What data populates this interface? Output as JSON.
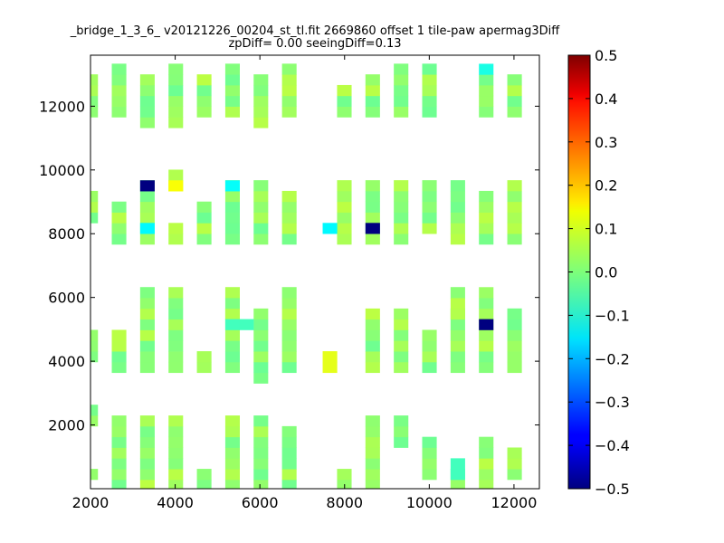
{
  "chart_data": {
    "type": "heatmap",
    "title_lines": [
      "_bridge_1_3_6_ v20121226_00204_st_tl.fit 2669860 offset 1 tile-paw apermag3Diff",
      "zpDiff= 0.00 seeingDiff=0.13"
    ],
    "xlabel": "",
    "ylabel": "",
    "xlim": [
      2000,
      12600
    ],
    "ylim": [
      0,
      13600
    ],
    "x_ticks": [
      2000,
      4000,
      6000,
      8000,
      10000,
      12000
    ],
    "y_ticks": [
      2000,
      4000,
      6000,
      8000,
      10000,
      12000
    ],
    "colormap": "jet",
    "colorbar": {
      "vmin": -0.5,
      "vmax": 0.5,
      "ticks": [
        0.5,
        0.4,
        0.3,
        0.2,
        0.1,
        0.0,
        -0.1,
        -0.2,
        -0.3,
        -0.4,
        -0.5
      ],
      "tick_labels": [
        "0.5",
        "0.4",
        "0.3",
        "0.2",
        "0.1",
        "0.0",
        "−0.1",
        "−0.2",
        "−0.3",
        "−0.4",
        "−0.5"
      ]
    },
    "cell_size": 335,
    "default_value": 0.02,
    "cell_columns": {
      "2000": [
        [
          455,
          787
        ],
        [
          2132,
          2467
        ],
        [
          4146,
          4817
        ],
        [
          8506,
          9507
        ],
        [
          11827,
          13164
        ]
      ],
      "2670": [
        [
          120,
          1125
        ],
        [
          1460,
          2132
        ],
        [
          3811,
          4817
        ],
        [
          7836,
          9173
        ],
        [
          11827,
          13500
        ]
      ],
      "3340": [
        [
          120,
          2132
        ],
        [
          3811,
          5153
        ],
        [
          5488,
          6159
        ],
        [
          7836,
          9842
        ],
        [
          11492,
          13164
        ]
      ],
      "4010": [
        [
          120,
          2132
        ],
        [
          3811,
          4146
        ],
        [
          4482,
          6159
        ],
        [
          7836,
          8171
        ],
        [
          9507,
          9842
        ],
        [
          11492,
          13500
        ]
      ],
      "4680": [
        [
          120,
          787
        ],
        [
          3811,
          4146
        ],
        [
          7836,
          9173
        ],
        [
          11827,
          13164
        ]
      ],
      "5350": [
        [
          120,
          2132
        ],
        [
          3811,
          5488
        ],
        [
          5488,
          6159
        ],
        [
          7836,
          9842
        ],
        [
          11827,
          13500
        ]
      ],
      "6020": [
        [
          120,
          2132
        ],
        [
          3476,
          5488
        ],
        [
          7836,
          9842
        ],
        [
          11492,
          13164
        ]
      ],
      "6690": [
        [
          120,
          1798
        ],
        [
          3811,
          5153
        ],
        [
          5488,
          6159
        ],
        [
          7836,
          9507
        ],
        [
          11827,
          13500
        ]
      ],
      "7990": [
        [
          120,
          787
        ],
        [
          7836,
          9842
        ],
        [
          11827,
          12496
        ]
      ],
      "8660": [
        [
          120,
          2132
        ],
        [
          3811,
          5488
        ],
        [
          7836,
          9842
        ],
        [
          11827,
          13164
        ]
      ],
      "9330": [
        [
          1460,
          2132
        ],
        [
          3811,
          5488
        ],
        [
          7836,
          9842
        ],
        [
          11827,
          13500
        ]
      ],
      "10000": [
        [
          455,
          1460
        ],
        [
          3811,
          4817
        ],
        [
          8171,
          9842
        ],
        [
          11827,
          13500
        ]
      ],
      "10670": [
        [
          120,
          787
        ],
        [
          3811,
          5488
        ],
        [
          5488,
          6159
        ],
        [
          7836,
          9842
        ]
      ],
      "11340": [
        [
          120,
          1460
        ],
        [
          3811,
          6159
        ],
        [
          7836,
          9507
        ],
        [
          11827,
          13164
        ]
      ],
      "12010": [
        [
          455,
          1125
        ],
        [
          3811,
          4817
        ],
        [
          5153,
          5488
        ],
        [
          7836,
          9842
        ],
        [
          11827,
          13164
        ]
      ]
    },
    "highlight_cells": [
      {
        "x": 3340,
        "y": 9507,
        "value": -0.5
      },
      {
        "x": 4010,
        "y": 9507,
        "value": 0.12
      },
      {
        "x": 5350,
        "y": 9507,
        "value": -0.12
      },
      {
        "x": 3340,
        "y": 8171,
        "value": -0.13
      },
      {
        "x": 7650,
        "y": 8171,
        "value": -0.13
      },
      {
        "x": 8660,
        "y": 8171,
        "value": -0.5
      },
      {
        "x": 11340,
        "y": 5153,
        "value": -0.5
      },
      {
        "x": 5350,
        "y": 5153,
        "value": -0.06
      },
      {
        "x": 5680,
        "y": 5153,
        "value": -0.06
      },
      {
        "x": 7650,
        "y": 3811,
        "value": 0.1
      },
      {
        "x": 7650,
        "y": 4146,
        "value": 0.1
      },
      {
        "x": 11340,
        "y": 13164,
        "value": -0.1
      },
      {
        "x": 10670,
        "y": 455,
        "value": -0.06
      },
      {
        "x": 10670,
        "y": 787,
        "value": -0.06
      }
    ]
  }
}
